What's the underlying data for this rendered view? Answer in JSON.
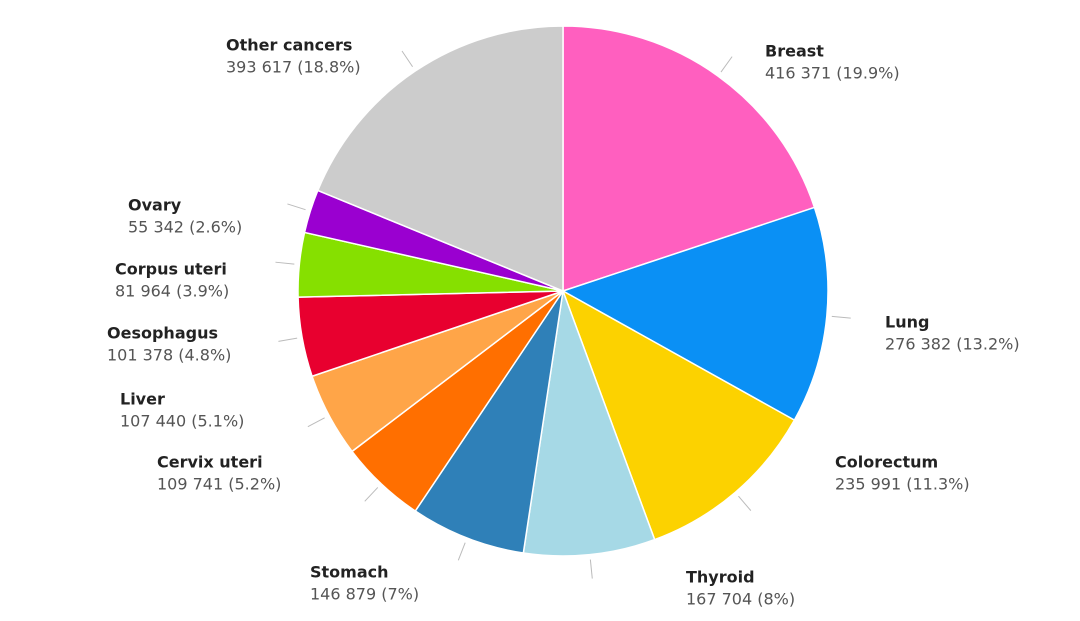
{
  "chart_data": {
    "type": "pie",
    "categories": [
      "Breast",
      "Lung",
      "Colorectum",
      "Thyroid",
      "Stomach",
      "Cervix uteri",
      "Liver",
      "Oesophagus",
      "Corpus uteri",
      "Ovary",
      "Other cancers"
    ],
    "values": [
      416371,
      276382,
      235991,
      167704,
      146879,
      109741,
      107440,
      101378,
      81964,
      55342,
      393617
    ],
    "value_labels": [
      "416 371 (19.9%)",
      "276 382 (13.2%)",
      "235 991 (11.3%)",
      "167 704 (8%)",
      "146 879 (7%)",
      "109 741 (5.2%)",
      "107 440 (5.1%)",
      "101 378 (4.8%)",
      "81 964 (3.9%)",
      "55 342 (2.6%)",
      "393 617 (18.8%)"
    ],
    "colors": [
      "#ff5fbf",
      "#0a90f5",
      "#fcd200",
      "#a6d9e6",
      "#2f80b8",
      "#ff6f00",
      "#ffa548",
      "#e8002f",
      "#86e000",
      "#9a00d0",
      "#cccccc"
    ]
  }
}
